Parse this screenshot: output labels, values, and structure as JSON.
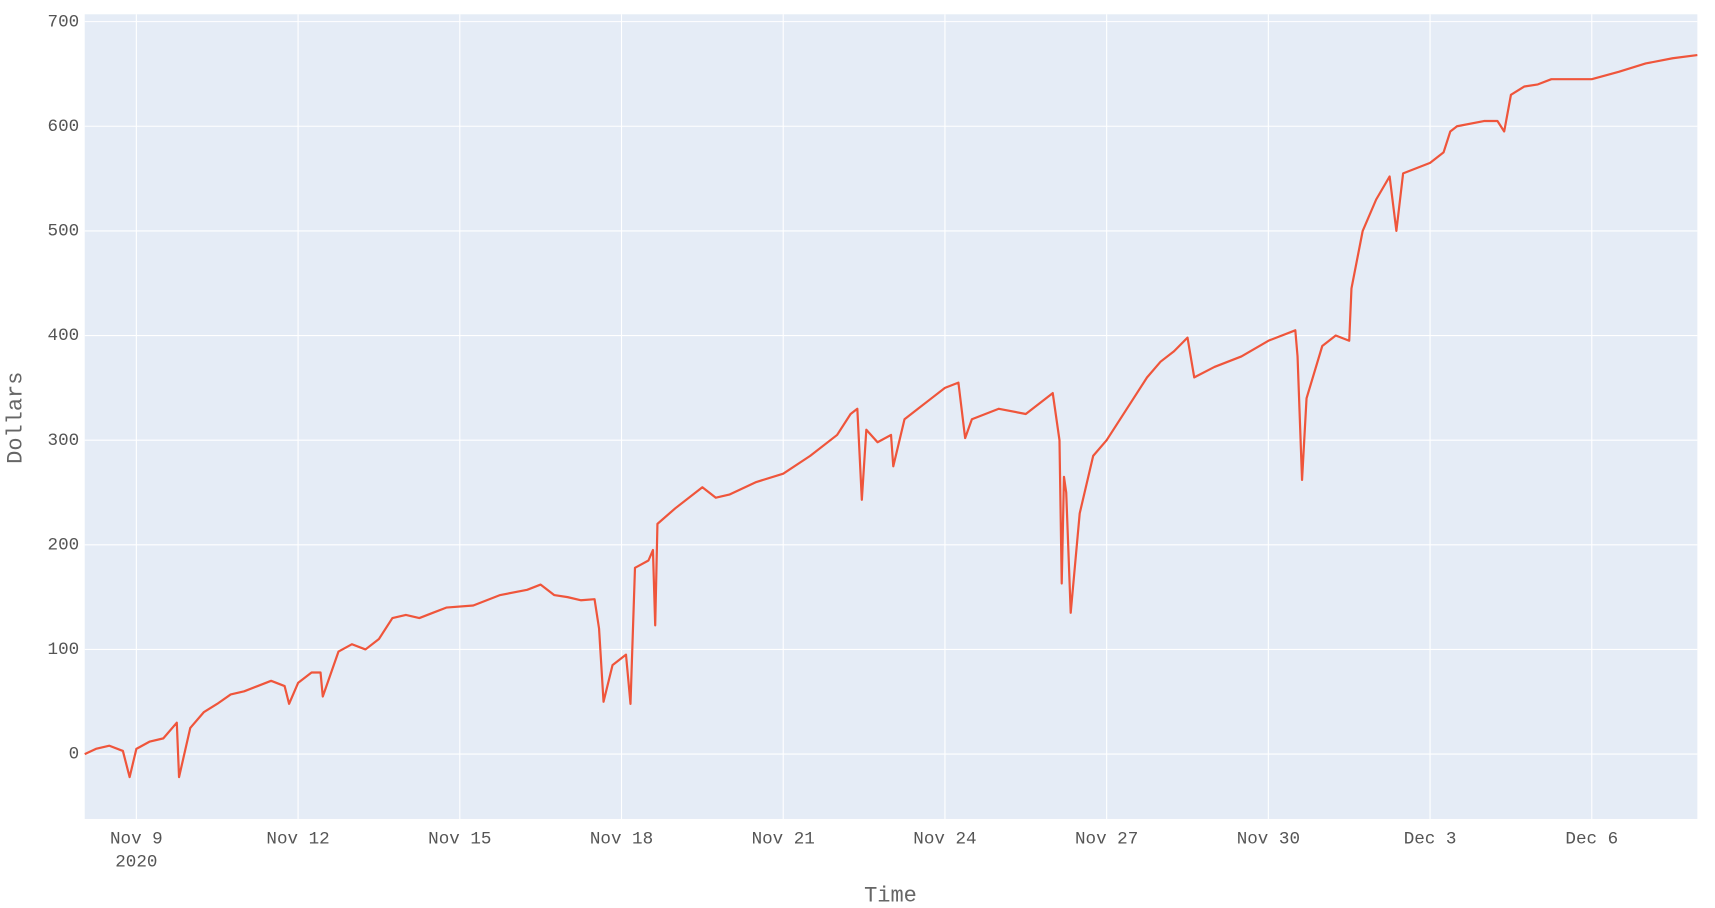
{
  "chart_data": {
    "type": "line",
    "x_title": "Time",
    "y_title": "Dollars",
    "xlim": [
      "2020-11-08T01:00",
      "2020-12-07T23:00"
    ],
    "ylim": [
      -62,
      707
    ],
    "yticks": [
      0,
      100,
      200,
      300,
      400,
      500,
      600,
      700
    ],
    "xticks": [
      {
        "value": "2020-11-09T00:00",
        "label": "Nov 9"
      },
      {
        "value": "2020-11-12T00:00",
        "label": "Nov 12"
      },
      {
        "value": "2020-11-15T00:00",
        "label": "Nov 15"
      },
      {
        "value": "2020-11-18T00:00",
        "label": "Nov 18"
      },
      {
        "value": "2020-11-21T00:00",
        "label": "Nov 21"
      },
      {
        "value": "2020-11-24T00:00",
        "label": "Nov 24"
      },
      {
        "value": "2020-11-27T00:00",
        "label": "Nov 27"
      },
      {
        "value": "2020-11-30T00:00",
        "label": "Nov 30"
      },
      {
        "value": "2020-12-03T00:00",
        "label": "Dec 3"
      },
      {
        "value": "2020-12-06T00:00",
        "label": "Dec 6"
      }
    ],
    "xtick_year": "2020",
    "grid": true,
    "x": [
      "2020-11-08T01:00",
      "2020-11-08T06:00",
      "2020-11-08T12:00",
      "2020-11-08T18:00",
      "2020-11-08T21:00",
      "2020-11-09T00:00",
      "2020-11-09T06:00",
      "2020-11-09T12:00",
      "2020-11-09T18:00",
      "2020-11-09T19:00",
      "2020-11-10T00:00",
      "2020-11-10T06:00",
      "2020-11-10T12:00",
      "2020-11-10T18:00",
      "2020-11-11T00:00",
      "2020-11-11T06:00",
      "2020-11-11T12:00",
      "2020-11-11T18:00",
      "2020-11-11T20:00",
      "2020-11-12T00:00",
      "2020-11-12T06:00",
      "2020-11-12T10:00",
      "2020-11-12T11:00",
      "2020-11-12T18:00",
      "2020-11-13T00:00",
      "2020-11-13T06:00",
      "2020-11-13T12:00",
      "2020-11-13T18:00",
      "2020-11-14T00:00",
      "2020-11-14T06:00",
      "2020-11-14T12:00",
      "2020-11-14T18:00",
      "2020-11-15T06:00",
      "2020-11-15T18:00",
      "2020-11-16T06:00",
      "2020-11-16T12:00",
      "2020-11-16T18:00",
      "2020-11-17T00:00",
      "2020-11-17T06:00",
      "2020-11-17T12:00",
      "2020-11-17T14:00",
      "2020-11-17T16:00",
      "2020-11-17T20:00",
      "2020-11-18T02:00",
      "2020-11-18T04:00",
      "2020-11-18T06:00",
      "2020-11-18T12:00",
      "2020-11-18T14:00",
      "2020-11-18T15:00",
      "2020-11-18T16:00",
      "2020-11-19T00:00",
      "2020-11-19T12:00",
      "2020-11-19T18:00",
      "2020-11-20T00:00",
      "2020-11-20T12:00",
      "2020-11-21T00:00",
      "2020-11-21T12:00",
      "2020-11-22T00:00",
      "2020-11-22T06:00",
      "2020-11-22T09:00",
      "2020-11-22T11:00",
      "2020-11-22T13:00",
      "2020-11-22T18:00",
      "2020-11-23T00:00",
      "2020-11-23T01:00",
      "2020-11-23T06:00",
      "2020-11-23T12:00",
      "2020-11-23T18:00",
      "2020-11-24T00:00",
      "2020-11-24T06:00",
      "2020-11-24T09:00",
      "2020-11-24T12:00",
      "2020-11-24T18:00",
      "2020-11-25T00:00",
      "2020-11-25T12:00",
      "2020-11-26T00:00",
      "2020-11-26T03:00",
      "2020-11-26T04:00",
      "2020-11-26T05:00",
      "2020-11-26T06:00",
      "2020-11-26T08:00",
      "2020-11-26T12:00",
      "2020-11-26T18:00",
      "2020-11-27T00:00",
      "2020-11-27T12:00",
      "2020-11-27T18:00",
      "2020-11-28T00:00",
      "2020-11-28T06:00",
      "2020-11-28T12:00",
      "2020-11-28T15:00",
      "2020-11-29T00:00",
      "2020-11-29T12:00",
      "2020-11-30T00:00",
      "2020-11-30T12:00",
      "2020-11-30T13:00",
      "2020-11-30T15:00",
      "2020-11-30T17:00",
      "2020-12-01T00:00",
      "2020-12-01T06:00",
      "2020-12-01T12:00",
      "2020-12-01T13:00",
      "2020-12-01T18:00",
      "2020-12-02T00:00",
      "2020-12-02T06:00",
      "2020-12-02T09:00",
      "2020-12-02T12:00",
      "2020-12-02T18:00",
      "2020-12-03T00:00",
      "2020-12-03T06:00",
      "2020-12-03T09:00",
      "2020-12-03T12:00",
      "2020-12-04T00:00",
      "2020-12-04T06:00",
      "2020-12-04T09:00",
      "2020-12-04T12:00",
      "2020-12-04T18:00",
      "2020-12-05T00:00",
      "2020-12-05T06:00",
      "2020-12-05T12:00",
      "2020-12-06T00:00",
      "2020-12-06T12:00",
      "2020-12-07T00:00",
      "2020-12-07T12:00",
      "2020-12-07T23:00"
    ],
    "series": [
      {
        "color": "#ef553b",
        "values": [
          0,
          5,
          8,
          3,
          -22,
          5,
          12,
          15,
          30,
          -22,
          25,
          40,
          48,
          57,
          60,
          65,
          70,
          65,
          48,
          68,
          78,
          78,
          55,
          98,
          105,
          100,
          110,
          130,
          133,
          130,
          135,
          140,
          142,
          152,
          157,
          162,
          152,
          150,
          147,
          148,
          120,
          50,
          85,
          95,
          48,
          178,
          185,
          195,
          123,
          220,
          235,
          255,
          245,
          248,
          260,
          268,
          285,
          305,
          325,
          330,
          243,
          310,
          298,
          305,
          275,
          320,
          330,
          340,
          350,
          355,
          302,
          320,
          325,
          330,
          325,
          345,
          300,
          163,
          265,
          250,
          135,
          230,
          285,
          300,
          340,
          360,
          375,
          385,
          398,
          360,
          370,
          380,
          395,
          405,
          380,
          262,
          340,
          390,
          400,
          395,
          445,
          500,
          530,
          552,
          500,
          555,
          560,
          565,
          575,
          595,
          600,
          605,
          605,
          595,
          630,
          638,
          640,
          645,
          645,
          645,
          652,
          660,
          665,
          668
        ]
      }
    ]
  }
}
